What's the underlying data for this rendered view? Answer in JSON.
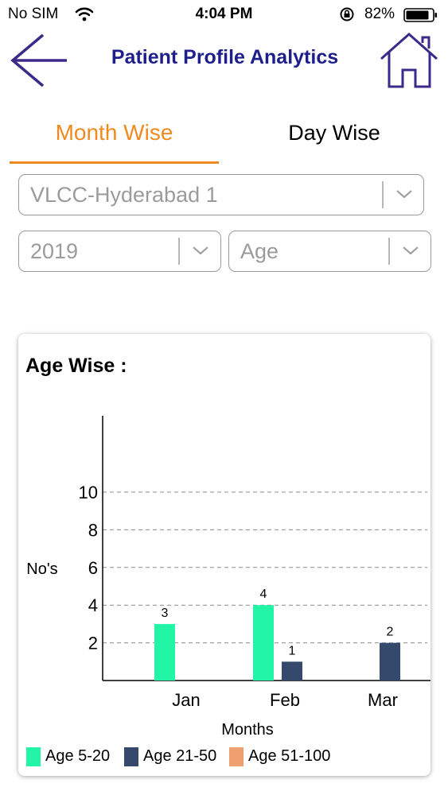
{
  "status": {
    "carrier": "No SIM",
    "time": "4:04 PM",
    "battery": "82%"
  },
  "header": {
    "title": "Patient Profile Analytics"
  },
  "tabs": [
    {
      "label": "Month Wise",
      "active": true
    },
    {
      "label": "Day Wise",
      "active": false
    }
  ],
  "filters": {
    "center": "VLCC-Hyderabad 1",
    "year": "2019",
    "type": "Age"
  },
  "colors": {
    "accent": "#ee8a1f",
    "title": "#1f1f8c",
    "series1": "#22f5a6",
    "series2": "#34496b",
    "series3": "#f0a06e"
  },
  "chart_data": {
    "type": "bar",
    "title": "Age Wise :",
    "xlabel": "Months",
    "ylabel": "No's",
    "categories": [
      "Jan",
      "Feb",
      "Mar"
    ],
    "yticks": [
      2,
      4,
      6,
      8,
      10
    ],
    "ylim": [
      0,
      14
    ],
    "grid": true,
    "legend_position": "bottom",
    "series": [
      {
        "name": "Age 5-20",
        "color": "#22f5a6",
        "values": [
          3,
          4,
          0
        ]
      },
      {
        "name": "Age 21-50",
        "color": "#34496b",
        "values": [
          0,
          1,
          2
        ]
      },
      {
        "name": "Age 51-100",
        "color": "#f0a06e",
        "values": [
          0,
          0,
          0
        ]
      }
    ]
  }
}
